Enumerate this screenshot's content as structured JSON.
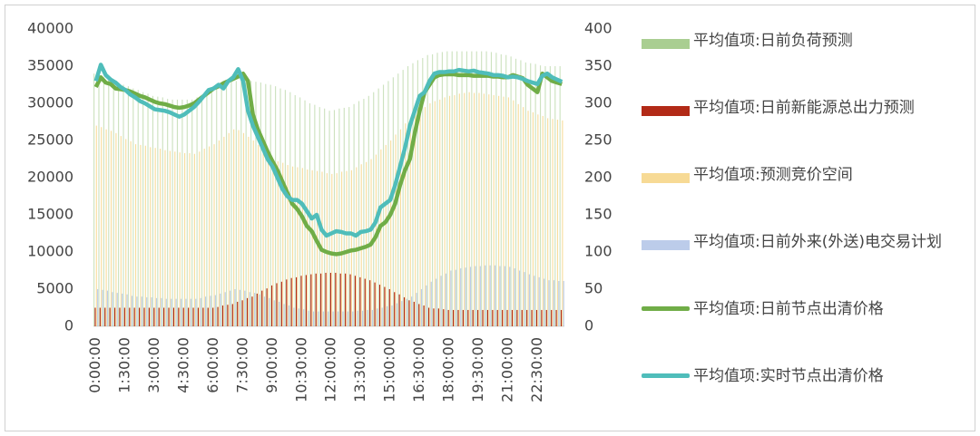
{
  "chart_data": {
    "type": "bar-line",
    "categories": [
      "0:00:00",
      null,
      null,
      null,
      null,
      null,
      "1:30:00",
      null,
      null,
      null,
      null,
      null,
      "3:00:00",
      null,
      null,
      null,
      null,
      null,
      "4:30:00",
      null,
      null,
      null,
      null,
      null,
      "6:00:00",
      null,
      null,
      null,
      null,
      null,
      "7:30:00",
      null,
      null,
      null,
      null,
      null,
      "9:00:00",
      null,
      null,
      null,
      null,
      null,
      "10:30:00",
      null,
      null,
      null,
      null,
      null,
      "12:00:00",
      null,
      null,
      null,
      null,
      null,
      "13:30:00",
      null,
      null,
      null,
      null,
      null,
      "15:00:00",
      null,
      null,
      null,
      null,
      null,
      "16:30:00",
      null,
      null,
      null,
      null,
      null,
      "18:00:00",
      null,
      null,
      null,
      null,
      null,
      "19:30:00",
      null,
      null,
      null,
      null,
      null,
      "21:00:00",
      null,
      null,
      null,
      null,
      null,
      "22:30:00",
      null,
      null,
      null,
      null,
      null
    ],
    "ylim": [
      0,
      40000
    ],
    "yticks": [
      0,
      5000,
      10000,
      15000,
      20000,
      25000,
      30000,
      35000,
      40000
    ],
    "y2lim": [
      0,
      400
    ],
    "y2ticks": [
      0,
      50,
      100,
      150,
      200,
      250,
      300,
      350,
      400
    ],
    "series": [
      {
        "name": "平均值项:日前负荷预测",
        "kind": "bar",
        "color": "#70ad47",
        "values": [
          34000,
          33800,
          33500,
          33300,
          33000,
          32800,
          32500,
          32300,
          32000,
          31800,
          31500,
          31300,
          31000,
          30900,
          30800,
          30600,
          30500,
          30500,
          30500,
          30500,
          30500,
          30800,
          31000,
          31300,
          31500,
          31900,
          32300,
          32600,
          33000,
          33000,
          33000,
          33000,
          33000,
          32900,
          32800,
          32600,
          32500,
          32300,
          32000,
          31800,
          31500,
          31100,
          30800,
          30400,
          30000,
          29800,
          29500,
          29300,
          29000,
          29100,
          29300,
          29400,
          29500,
          29900,
          30300,
          30600,
          31000,
          31500,
          32000,
          32500,
          33000,
          33500,
          34000,
          34500,
          35000,
          35400,
          35800,
          36100,
          36500,
          36600,
          36800,
          36900,
          37000,
          37000,
          37000,
          37000,
          37000,
          37000,
          37000,
          37000,
          37000,
          36900,
          36800,
          36600,
          36500,
          36300,
          36000,
          35800,
          35500,
          35400,
          35300,
          35100,
          35000,
          35000,
          35000,
          35000
        ]
      },
      {
        "name": "平均值项:日前新能源总出力预测",
        "kind": "bar",
        "color": "#b22a17",
        "values": [
          2500,
          2500,
          2500,
          2500,
          2500,
          2500,
          2500,
          2500,
          2500,
          2500,
          2500,
          2500,
          2500,
          2500,
          2500,
          2500,
          2500,
          2500,
          2500,
          2500,
          2500,
          2500,
          2500,
          2500,
          2500,
          2600,
          2800,
          2900,
          3000,
          3300,
          3500,
          3800,
          4000,
          4400,
          4800,
          5100,
          5500,
          5800,
          6000,
          6300,
          6500,
          6600,
          6800,
          6900,
          7000,
          7100,
          7100,
          7200,
          7200,
          7200,
          7100,
          7100,
          7000,
          6800,
          6600,
          6400,
          6200,
          5900,
          5600,
          5300,
          5000,
          4600,
          4300,
          3900,
          3500,
          3300,
          3000,
          2800,
          2500,
          2400,
          2400,
          2300,
          2200,
          2200,
          2200,
          2200,
          2200,
          2200,
          2200,
          2200,
          2200,
          2200,
          2200,
          2200,
          2200,
          2200,
          2200,
          2200,
          2200,
          2200,
          2200,
          2200,
          2200,
          2200,
          2200,
          2200
        ]
      },
      {
        "name": "平均值项:预测竞价空间",
        "kind": "bar",
        "color": "#f2c14e",
        "values": [
          27000,
          26800,
          26500,
          26300,
          26000,
          25600,
          25200,
          24900,
          24500,
          24400,
          24300,
          24100,
          24000,
          23900,
          23700,
          23600,
          23500,
          23400,
          23300,
          23300,
          23200,
          23500,
          23900,
          24200,
          24500,
          25000,
          25500,
          26000,
          26500,
          26400,
          26000,
          25500,
          25000,
          24400,
          23800,
          23100,
          22500,
          22200,
          22000,
          21700,
          21500,
          21400,
          21300,
          21100,
          21000,
          20900,
          20800,
          20600,
          20500,
          20600,
          20800,
          20900,
          21000,
          21400,
          21800,
          22100,
          22500,
          23100,
          23800,
          24400,
          25000,
          25800,
          26500,
          27300,
          28000,
          28500,
          29000,
          29500,
          30000,
          30300,
          30500,
          30800,
          31000,
          31100,
          31300,
          31400,
          31500,
          31400,
          31400,
          31300,
          31200,
          31100,
          31000,
          30900,
          30800,
          30400,
          29900,
          29500,
          29000,
          28800,
          28500,
          28300,
          28000,
          27900,
          27800,
          27700
        ]
      },
      {
        "name": "平均值项:日前外来(外送)电交易计划",
        "kind": "bar",
        "color": "#8faadc",
        "values": [
          5000,
          4900,
          4800,
          4600,
          4500,
          4400,
          4300,
          4100,
          4000,
          4000,
          3900,
          3900,
          3800,
          3800,
          3700,
          3700,
          3700,
          3700,
          3700,
          3700,
          3700,
          3800,
          4000,
          4100,
          4200,
          4400,
          4600,
          4800,
          5000,
          4900,
          4800,
          4600,
          4500,
          4300,
          4000,
          3800,
          3500,
          3300,
          3000,
          2800,
          2500,
          2400,
          2300,
          2100,
          2000,
          2000,
          2000,
          2000,
          2000,
          2000,
          2000,
          2000,
          2000,
          2100,
          2100,
          2200,
          2200,
          2400,
          2500,
          2700,
          2800,
          3100,
          3400,
          3700,
          4000,
          4500,
          5000,
          5500,
          6000,
          6400,
          6800,
          7100,
          7500,
          7600,
          7800,
          7900,
          8000,
          8100,
          8100,
          8200,
          8200,
          8200,
          8100,
          8100,
          8000,
          7800,
          7500,
          7300,
          7000,
          6800,
          6600,
          6400,
          6200,
          6200,
          6100,
          6100
        ]
      },
      {
        "name": "平均值项:日前节点出清价格",
        "kind": "line",
        "axis": "y2",
        "color": "#70ad47",
        "values": [
          322,
          335,
          328,
          326,
          320,
          319,
          318,
          316,
          313,
          310,
          308,
          305,
          302,
          300,
          299,
          297,
          295,
          294,
          295,
          297,
          300,
          305,
          310,
          315,
          320,
          323,
          327,
          330,
          333,
          336,
          340,
          330,
          285,
          265,
          250,
          235,
          222,
          210,
          195,
          180,
          165,
          158,
          148,
          135,
          128,
          115,
          103,
          100,
          98,
          97,
          98,
          100,
          102,
          103,
          105,
          107,
          110,
          120,
          135,
          140,
          150,
          165,
          190,
          210,
          225,
          260,
          290,
          315,
          325,
          335,
          338,
          339,
          339,
          339,
          338,
          338,
          338,
          337,
          337,
          337,
          337,
          336,
          336,
          335,
          335,
          338,
          336,
          334,
          325,
          320,
          315,
          340,
          335,
          330,
          328,
          326
        ]
      },
      {
        "name": "平均值项:实时节点出清价格",
        "kind": "line",
        "axis": "y2",
        "color": "#4fbdba",
        "values": [
          330,
          352,
          338,
          332,
          328,
          322,
          318,
          312,
          308,
          303,
          300,
          296,
          292,
          291,
          290,
          288,
          285,
          282,
          285,
          290,
          295,
          302,
          310,
          318,
          320,
          325,
          320,
          330,
          335,
          346,
          330,
          290,
          270,
          255,
          240,
          225,
          215,
          200,
          185,
          175,
          170,
          170,
          165,
          155,
          145,
          150,
          130,
          122,
          125,
          128,
          127,
          125,
          125,
          122,
          127,
          128,
          130,
          140,
          160,
          165,
          170,
          190,
          215,
          240,
          270,
          290,
          310,
          315,
          330,
          340,
          342,
          342,
          343,
          343,
          345,
          344,
          343,
          344,
          342,
          341,
          340,
          338,
          338,
          337,
          335,
          336,
          335,
          333,
          330,
          328,
          326,
          337,
          340,
          335,
          332,
          329
        ]
      }
    ]
  }
}
